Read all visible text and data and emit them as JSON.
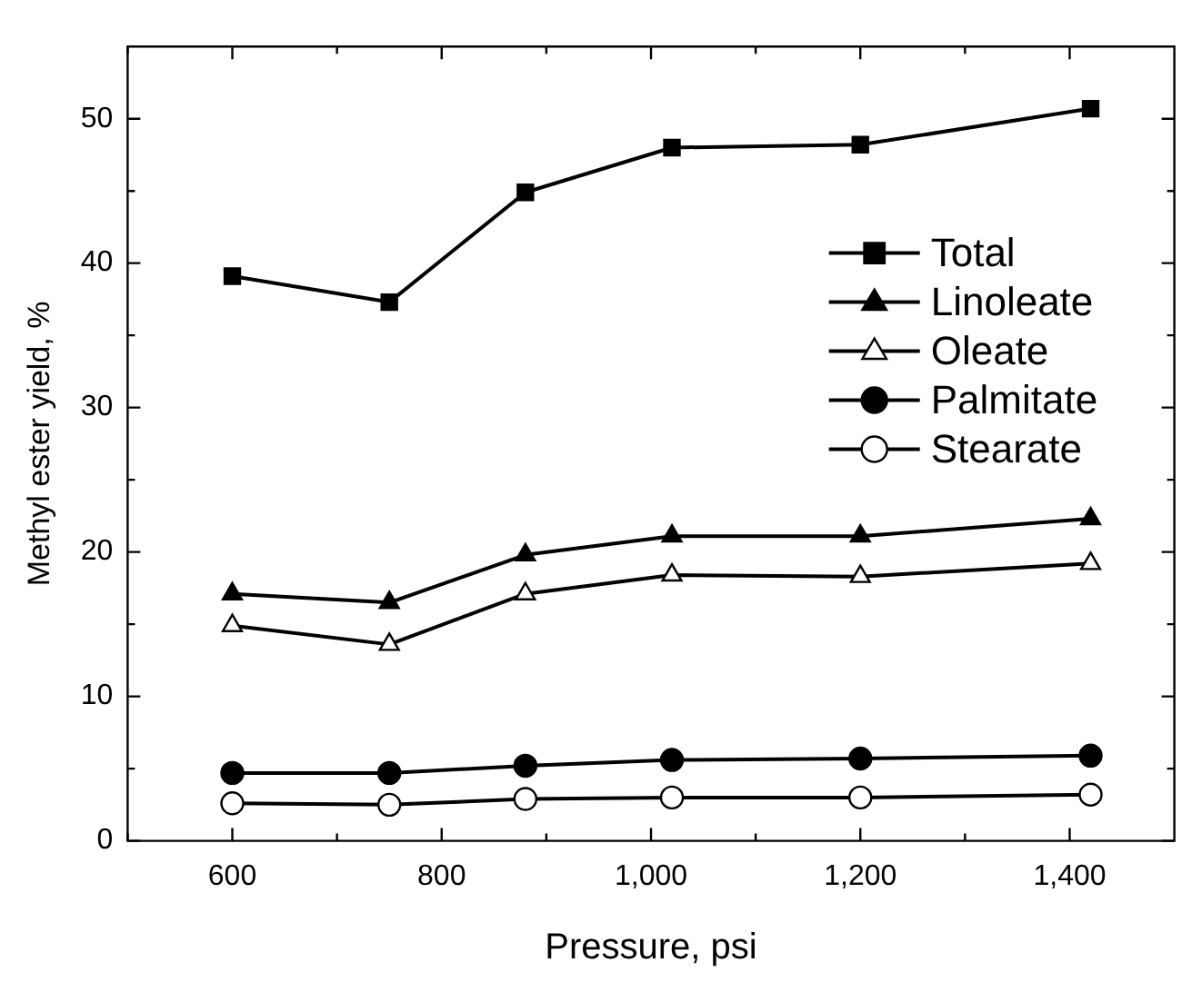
{
  "chart_data": {
    "type": "line",
    "xlabel": "Pressure, psi",
    "ylabel": "Methyl ester yield, %",
    "x": [
      600,
      750,
      880,
      1020,
      1200,
      1420
    ],
    "series": [
      {
        "name": "Total",
        "color": "#000000",
        "marker": "square",
        "values": [
          39.1,
          37.3,
          44.9,
          48.0,
          48.2,
          50.7
        ]
      },
      {
        "name": "Linoleate",
        "color": "#000000",
        "marker": "triangle",
        "values": [
          17.1,
          16.5,
          19.8,
          21.1,
          21.1,
          22.3
        ]
      },
      {
        "name": "Oleate",
        "color": "#000000",
        "marker": "triangle",
        "values": [
          14.9,
          13.6,
          17.1,
          18.4,
          18.3,
          19.2
        ]
      },
      {
        "name": "Palmitate",
        "color": "#000000",
        "marker": "circle",
        "values": [
          4.7,
          4.7,
          5.2,
          5.6,
          5.7,
          5.9
        ]
      },
      {
        "name": "Stearate",
        "color": "#000000",
        "marker": "circle",
        "values": [
          2.6,
          2.5,
          2.9,
          3.0,
          3.0,
          3.2
        ]
      }
    ],
    "xlim": [
      500,
      1500
    ],
    "xticks": [
      {
        "value": 500,
        "label": null
      },
      600,
      {
        "value": 700,
        "label": null
      },
      {
        "value": 800,
        "label": "800"
      },
      {
        "value": 900,
        "label": null
      },
      {
        "value": 1000,
        "label": "1,000"
      },
      {
        "value": 1100,
        "label": null
      },
      {
        "value": 1200,
        "label": "1,200"
      },
      {
        "value": 1300,
        "label": null
      },
      {
        "value": 1400,
        "label": "1,400"
      }
    ],
    "ylim": [
      0,
      55
    ],
    "yticks": [
      0,
      {
        "value": 5,
        "label": null
      },
      10,
      {
        "value": 15,
        "label": null
      },
      20,
      {
        "value": 25,
        "label": null
      },
      30,
      {
        "value": 35,
        "label": null
      },
      40,
      {
        "value": 45,
        "label": null
      },
      50
    ],
    "grid": false,
    "legend": "top right",
    "line_style": "solid"
  }
}
